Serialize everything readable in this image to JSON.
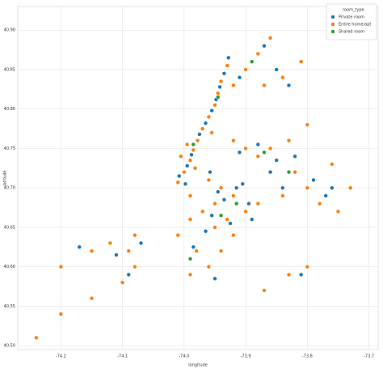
{
  "chart_data": {
    "type": "scatter",
    "xlabel": "longitude",
    "ylabel": "latitude",
    "legend_title": "room_type",
    "legend": "upper right",
    "grid": true,
    "xlim": [
      -74.27,
      -73.685
    ],
    "ylim": [
      40.495,
      40.93
    ],
    "xticks": [
      -74.2,
      -74.1,
      {
        "value": -74.0,
        "label": "-74.0"
      },
      -73.9,
      -73.8,
      -73.7
    ],
    "yticks": [
      {
        "value": 40.5,
        "label": "40.50"
      },
      40.55,
      {
        "value": 40.6,
        "label": "40.60"
      },
      40.65,
      {
        "value": 40.7,
        "label": "40.70"
      },
      40.75,
      {
        "value": 40.8,
        "label": "40.80"
      },
      40.85,
      {
        "value": 40.9,
        "label": "40.90"
      }
    ],
    "series": [
      {
        "name": "Private room",
        "color": "#1f77b4",
        "x": [
          -74.008,
          -73.995,
          -73.988,
          -73.975,
          -73.965,
          -73.955,
          -73.948,
          -73.942,
          -73.935,
          -73.928,
          -73.998,
          -73.958,
          -73.945,
          -73.935,
          -73.915,
          -73.905,
          -73.895,
          -73.955,
          -73.965,
          -73.985,
          -73.925,
          -73.89,
          -73.91,
          -73.88,
          -73.85,
          -73.82,
          -73.79,
          -73.77,
          -73.84,
          -73.86,
          -73.91,
          -73.89,
          -73.87,
          -73.85,
          -73.83,
          -74.07,
          -74.11,
          -74.17,
          -74.09,
          -73.95,
          -73.81,
          -73.76
        ],
        "values": [
          40.715,
          40.728,
          40.742,
          40.768,
          40.782,
          40.798,
          40.812,
          40.828,
          40.845,
          40.865,
          40.705,
          40.72,
          40.695,
          40.685,
          40.7,
          40.705,
          40.68,
          40.665,
          40.645,
          40.625,
          40.655,
          40.66,
          40.745,
          40.755,
          40.735,
          40.74,
          40.71,
          40.69,
          40.7,
          40.72,
          40.84,
          40.86,
          40.88,
          40.85,
          40.83,
          40.63,
          40.615,
          40.625,
          40.59,
          40.585,
          40.59,
          40.7
        ]
      },
      {
        "name": "Entire home/apt",
        "color": "#ff7f0e",
        "x": [
          -74.01,
          -74.0,
          -73.99,
          -73.985,
          -73.978,
          -73.97,
          -73.96,
          -73.95,
          -73.945,
          -73.94,
          -73.93,
          -74.005,
          -73.995,
          -73.982,
          -73.955,
          -73.99,
          -73.96,
          -73.95,
          -73.94,
          -73.92,
          -73.97,
          -73.99,
          -73.95,
          -73.93,
          -73.9,
          -73.88,
          -74.01,
          -73.98,
          -73.96,
          -73.99,
          -73.94,
          -73.92,
          -73.92,
          -73.9,
          -73.88,
          -73.86,
          -73.83,
          -73.8,
          -73.78,
          -73.76,
          -73.82,
          -73.84,
          -73.75,
          -73.73,
          -73.8,
          -73.83,
          -73.8,
          -73.87,
          -73.92,
          -73.9,
          -73.88,
          -73.86,
          -73.87,
          -73.84,
          -73.81,
          -74.08,
          -74.09,
          -74.12,
          -74.15,
          -74.2,
          -74.1,
          -74.15,
          -74.2,
          -74.24,
          -74.08
        ],
        "values": [
          40.707,
          40.72,
          40.735,
          40.748,
          40.76,
          40.775,
          40.79,
          40.805,
          40.82,
          40.835,
          40.855,
          40.74,
          40.755,
          40.725,
          40.77,
          40.69,
          40.71,
          40.68,
          40.7,
          40.69,
          40.67,
          40.66,
          40.65,
          40.66,
          40.67,
          40.68,
          40.64,
          40.62,
          40.6,
          40.59,
          40.62,
          40.64,
          40.76,
          40.75,
          40.74,
          40.75,
          40.76,
          40.7,
          40.68,
          40.73,
          40.72,
          40.69,
          40.67,
          40.7,
          40.78,
          40.59,
          40.6,
          40.57,
          40.83,
          40.85,
          40.87,
          40.89,
          40.83,
          40.84,
          40.86,
          40.64,
          40.62,
          40.63,
          40.62,
          40.6,
          40.58,
          40.56,
          40.54,
          40.51,
          40.6
        ]
      },
      {
        "name": "Shared room",
        "color": "#2ca02c",
        "x": [
          -73.985,
          -73.945,
          -73.87,
          -73.83,
          -73.915,
          -73.94,
          -73.99,
          -73.89
        ],
        "values": [
          40.755,
          40.815,
          40.745,
          40.72,
          40.68,
          40.665,
          40.61,
          40.86
        ]
      }
    ]
  }
}
